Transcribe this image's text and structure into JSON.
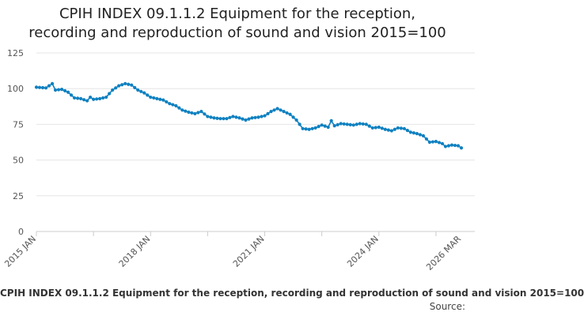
{
  "chart_data": {
    "type": "line",
    "title": [
      "CPIH INDEX 09.1.1.2 Equipment for the reception,",
      "recording and reproduction of sound and vision 2015=100"
    ],
    "caption": "CPIH INDEX 09.1.1.2 Equipment for the reception, recording and reproduction of sound and vision 2015=100",
    "source": "Source:",
    "y_ticks": [
      0,
      25,
      50,
      75,
      100,
      125
    ],
    "ylim": [
      0,
      125
    ],
    "x_range": [
      "2015-01",
      "2026-03"
    ],
    "x_tick_labels": [
      {
        "date": "2015-01",
        "label": "2015 JAN"
      },
      {
        "date": "2018-01",
        "label": "2018 JAN"
      },
      {
        "date": "2021-01",
        "label": "2021 JAN"
      },
      {
        "date": "2024-01",
        "label": "2024 JAN"
      },
      {
        "date": "2026-03",
        "label": "2026 MAR"
      }
    ],
    "x_minor_ticks": [
      "2015-01",
      "2016-07",
      "2018-01",
      "2019-07",
      "2021-01",
      "2022-07",
      "2024-01",
      "2025-07"
    ],
    "grid": true,
    "series_color": "#0f81c0",
    "series": [
      {
        "points": [
          [
            "2015-01",
            101
          ],
          [
            "2015-04",
            100.5
          ],
          [
            "2015-06",
            103.5
          ],
          [
            "2015-07",
            99
          ],
          [
            "2015-09",
            99.5
          ],
          [
            "2015-11",
            97.5
          ],
          [
            "2016-01",
            93.5
          ],
          [
            "2016-03",
            93
          ],
          [
            "2016-05",
            91.5
          ],
          [
            "2016-06",
            94
          ],
          [
            "2016-07",
            92.5
          ],
          [
            "2016-09",
            93
          ],
          [
            "2016-11",
            94
          ],
          [
            "2017-01",
            99
          ],
          [
            "2017-03",
            102
          ],
          [
            "2017-05",
            103.5
          ],
          [
            "2017-07",
            102.5
          ],
          [
            "2017-09",
            99
          ],
          [
            "2017-11",
            97
          ],
          [
            "2018-01",
            94
          ],
          [
            "2018-03",
            93
          ],
          [
            "2018-05",
            92
          ],
          [
            "2018-07",
            89.5
          ],
          [
            "2018-09",
            88
          ],
          [
            "2018-11",
            85
          ],
          [
            "2019-01",
            83.5
          ],
          [
            "2019-03",
            82.5
          ],
          [
            "2019-05",
            84
          ],
          [
            "2019-07",
            80.5
          ],
          [
            "2019-09",
            79.5
          ],
          [
            "2019-11",
            79
          ],
          [
            "2020-01",
            79
          ],
          [
            "2020-03",
            80.5
          ],
          [
            "2020-05",
            79.5
          ],
          [
            "2020-07",
            78
          ],
          [
            "2020-09",
            79.5
          ],
          [
            "2020-11",
            80
          ],
          [
            "2021-01",
            81
          ],
          [
            "2021-03",
            84
          ],
          [
            "2021-05",
            86
          ],
          [
            "2021-07",
            84
          ],
          [
            "2021-09",
            82
          ],
          [
            "2021-11",
            78
          ],
          [
            "2022-01",
            72
          ],
          [
            "2022-03",
            71.5
          ],
          [
            "2022-05",
            72.5
          ],
          [
            "2022-07",
            74.5
          ],
          [
            "2022-09",
            73
          ],
          [
            "2022-10",
            77.5
          ],
          [
            "2022-11",
            74
          ],
          [
            "2023-01",
            75.5
          ],
          [
            "2023-03",
            75
          ],
          [
            "2023-05",
            74.5
          ],
          [
            "2023-07",
            75.5
          ],
          [
            "2023-09",
            75
          ],
          [
            "2023-11",
            72.5
          ],
          [
            "2024-01",
            73
          ],
          [
            "2024-03",
            71.5
          ],
          [
            "2024-05",
            70.5
          ],
          [
            "2024-07",
            72.5
          ],
          [
            "2024-09",
            72
          ],
          [
            "2024-11",
            69.5
          ],
          [
            "2025-01",
            68.5
          ],
          [
            "2025-03",
            67
          ],
          [
            "2025-05",
            62.5
          ],
          [
            "2025-07",
            63
          ],
          [
            "2025-09",
            61.5
          ],
          [
            "2025-10",
            59.5
          ],
          [
            "2025-12",
            60.5
          ],
          [
            "2026-02",
            60
          ],
          [
            "2026-03",
            58.5
          ]
        ]
      }
    ]
  }
}
